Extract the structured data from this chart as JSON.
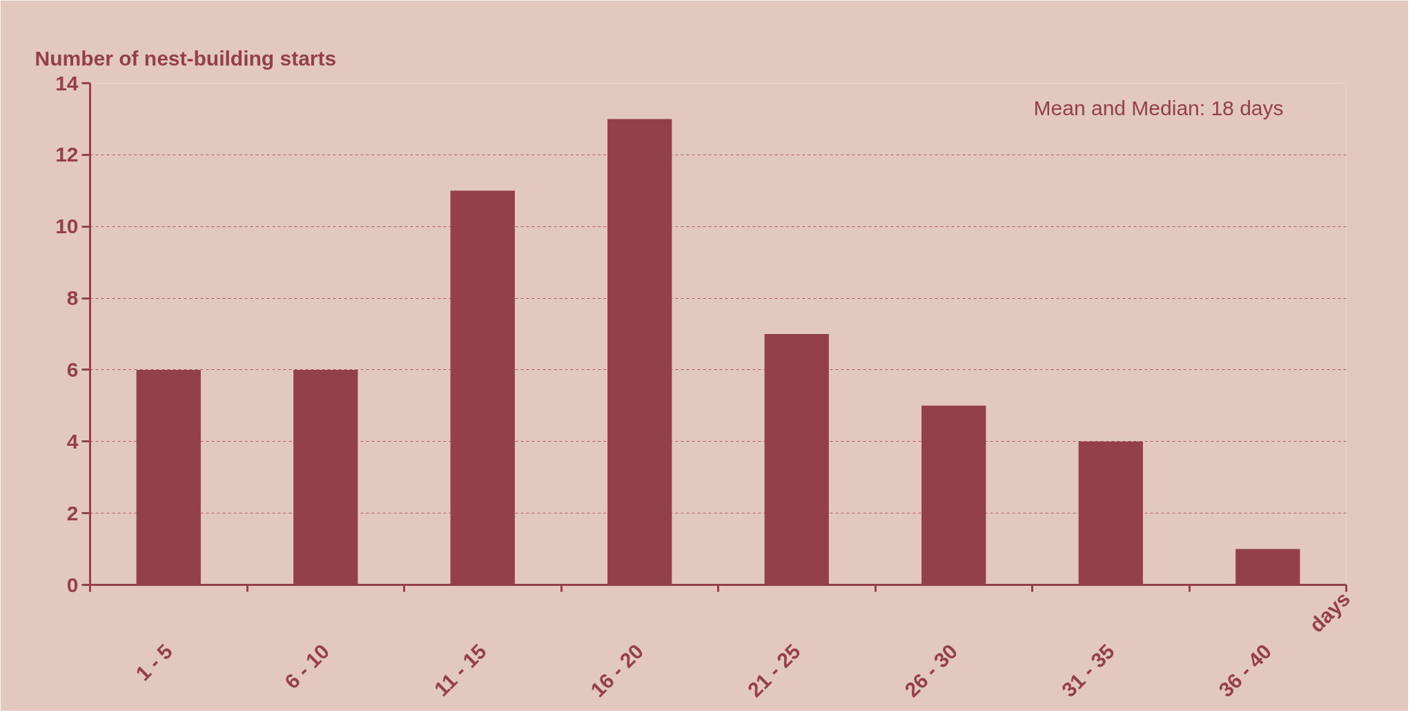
{
  "chart_data": {
    "type": "bar",
    "title": "Number of nest-building starts",
    "xlabel": "days",
    "categories": [
      "1 - 5",
      "6 - 10",
      "11 - 15",
      "16 - 20",
      "21 - 25",
      "26 - 30",
      "31 - 35",
      "36 - 40"
    ],
    "values": [
      6,
      6,
      11,
      13,
      7,
      5,
      4,
      1
    ],
    "color": "#93404a",
    "ylim": [
      0,
      14
    ],
    "yticks": [
      0,
      2,
      4,
      6,
      8,
      10,
      12,
      14
    ],
    "grid": "y",
    "annotations": [
      "Mean and Median: 18 days"
    ]
  }
}
